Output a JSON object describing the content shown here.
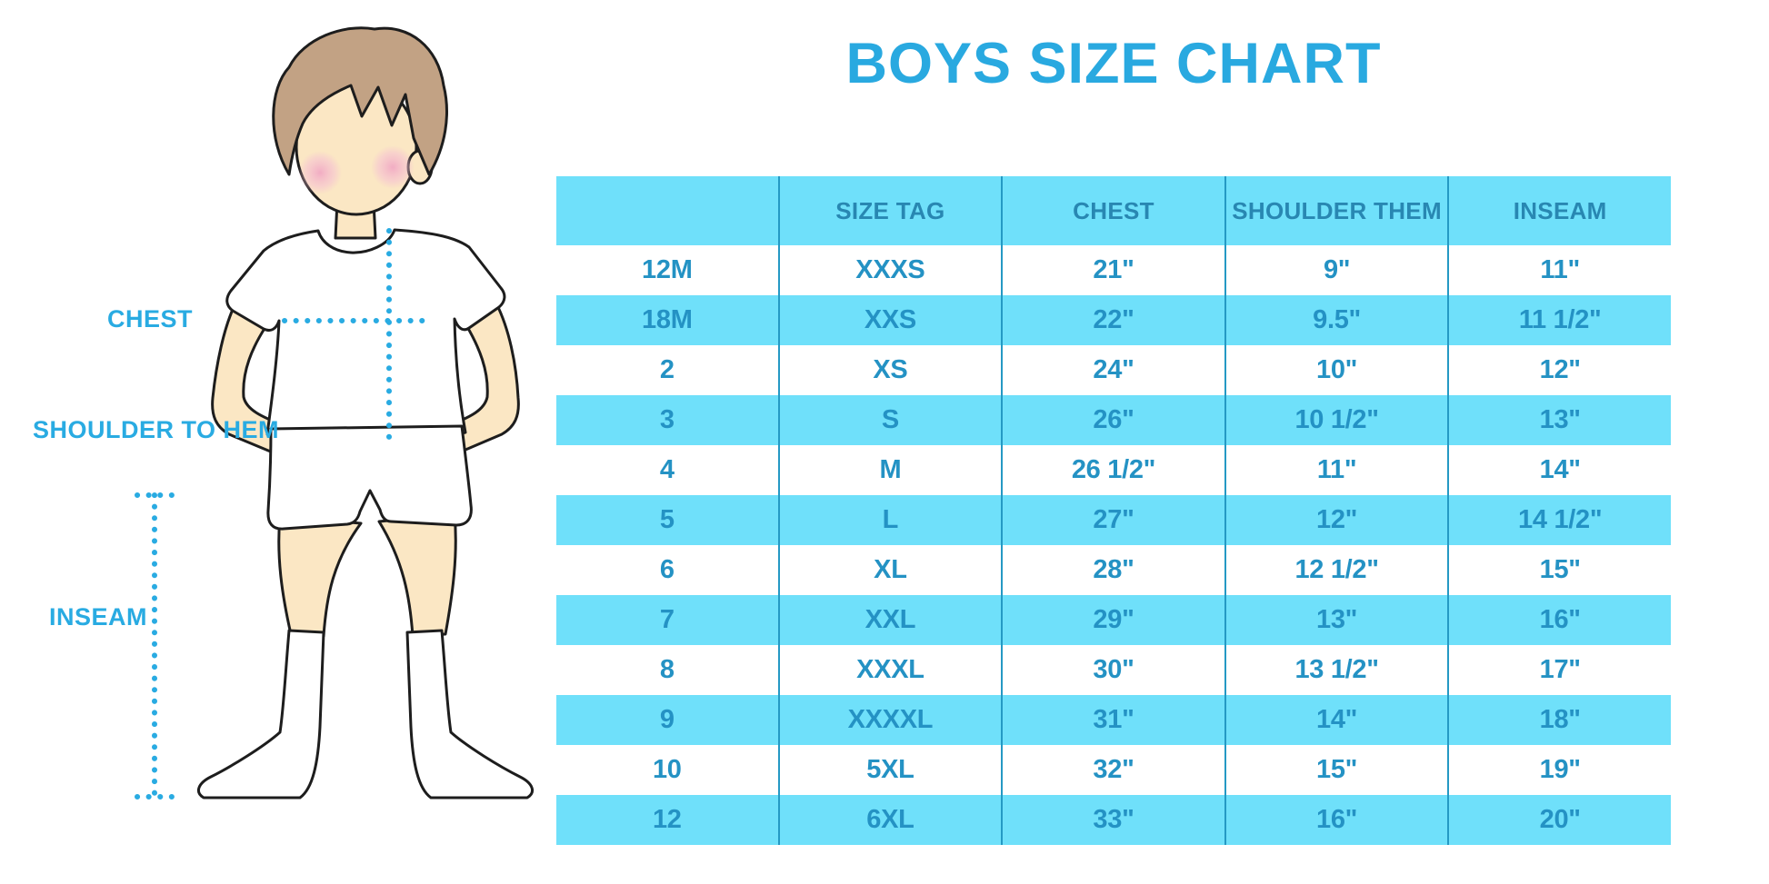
{
  "title": "BOYS SIZE CHART",
  "figure": {
    "labels": {
      "chest": "CHEST",
      "shoulder_to_hem": "SHOULDER TO HEM",
      "inseam": "INSEAM"
    }
  },
  "table": {
    "headers": [
      "",
      "SIZE TAG",
      "CHEST",
      "SHOULDER THEM",
      "INSEAM"
    ],
    "rows": [
      [
        "12M",
        "XXXS",
        "21\"",
        "9\"",
        "11\""
      ],
      [
        "18M",
        "XXS",
        "22\"",
        "9.5\"",
        "11 1/2\""
      ],
      [
        "2",
        "XS",
        "24\"",
        "10\"",
        "12\""
      ],
      [
        "3",
        "S",
        "26\"",
        "10 1/2\"",
        "13\""
      ],
      [
        "4",
        "M",
        "26 1/2\"",
        "11\"",
        "14\""
      ],
      [
        "5",
        "L",
        "27\"",
        "12\"",
        "14 1/2\""
      ],
      [
        "6",
        "XL",
        "28\"",
        "12 1/2\"",
        "15\""
      ],
      [
        "7",
        "XXL",
        "29\"",
        "13\"",
        "16\""
      ],
      [
        "8",
        "XXXL",
        "30\"",
        "13 1/2\"",
        "17\""
      ],
      [
        "9",
        "XXXXL",
        "31\"",
        "14\"",
        "18\""
      ],
      [
        "10",
        "5XL",
        "32\"",
        "15\"",
        "19\""
      ],
      [
        "12",
        "6XL",
        "33\"",
        "16\"",
        "20\""
      ]
    ]
  },
  "chart_data": {
    "type": "table",
    "title": "BOYS SIZE CHART",
    "columns": [
      "",
      "SIZE TAG",
      "CHEST",
      "SHOULDER THEM",
      "INSEAM"
    ],
    "rows": [
      [
        "12M",
        "XXXS",
        "21\"",
        "9\"",
        "11\""
      ],
      [
        "18M",
        "XXS",
        "22\"",
        "9.5\"",
        "11 1/2\""
      ],
      [
        "2",
        "XS",
        "24\"",
        "10\"",
        "12\""
      ],
      [
        "3",
        "S",
        "26\"",
        "10 1/2\"",
        "13\""
      ],
      [
        "4",
        "M",
        "26 1/2\"",
        "11\"",
        "14\""
      ],
      [
        "5",
        "L",
        "27\"",
        "12\"",
        "14 1/2\""
      ],
      [
        "6",
        "XL",
        "28\"",
        "12 1/2\"",
        "15\""
      ],
      [
        "7",
        "XXL",
        "29\"",
        "13\"",
        "16\""
      ],
      [
        "8",
        "XXXL",
        "30\"",
        "13 1/2\"",
        "17\""
      ],
      [
        "9",
        "XXXXL",
        "31\"",
        "14\"",
        "18\""
      ],
      [
        "10",
        "5XL",
        "32\"",
        "15\"",
        "19\""
      ],
      [
        "12",
        "6XL",
        "33\"",
        "16\"",
        "20\""
      ]
    ],
    "stripe_pattern": "alternating white / cyan starting white",
    "measurement_guides": [
      "CHEST",
      "SHOULDER TO HEM",
      "INSEAM"
    ]
  },
  "colors": {
    "title_blue": "#29A9E0",
    "band_cyan": "#6FE0FA",
    "table_text_blue": "#2492C4",
    "header_text_blue": "#2887B2",
    "divider_blue": "#2599C4",
    "label_dotted_blue": "#29ABE2",
    "skin": "#FBE7C4",
    "hair": "#C2A284",
    "blush": "#F3B3C9"
  }
}
